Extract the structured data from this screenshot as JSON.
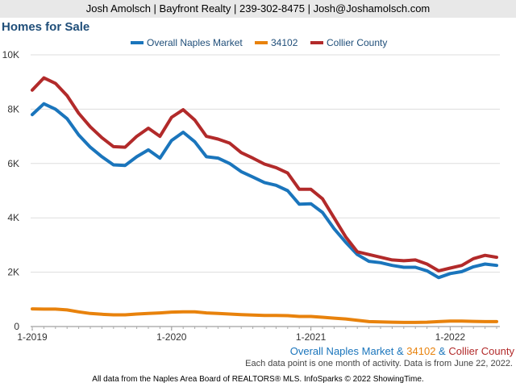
{
  "header": {
    "contact": "Josh Amolsch | Bayfront Realty | 239-302-8475 | Josh@Joshamolsch.com"
  },
  "chart_title": "Homes for Sale",
  "footer_series": {
    "s1": "Overall Naples Market",
    "amp1": " & ",
    "s2": "34102",
    "amp2": " & ",
    "s3": "Collier County"
  },
  "note": "Each data point is one month of activity. Data is from June 22, 2022.",
  "footer": "All data from the Naples Area Board of REALTORS® MLS. InfoSparks © 2022 ShowingTime.",
  "colors": {
    "naples": "#1a75bc",
    "z34102": "#e8820c",
    "collier": "#b22a2a"
  },
  "chart_data": {
    "type": "line",
    "title": "Homes for Sale",
    "x_start": "2019-01",
    "x_tick_labels": [
      "1-2019",
      "1-2020",
      "1-2021",
      "1-2022"
    ],
    "y_tick_labels": [
      "0",
      "2K",
      "4K",
      "6K",
      "8K",
      "10K"
    ],
    "ylim": [
      0,
      10000
    ],
    "legend_position": "top",
    "series": [
      {
        "name": "Overall Naples Market",
        "color": "#1a75bc",
        "values": [
          7800,
          8200,
          8000,
          7650,
          7050,
          6600,
          6250,
          5950,
          5930,
          6250,
          6500,
          6200,
          6850,
          7150,
          6800,
          6250,
          6200,
          6000,
          5700,
          5500,
          5300,
          5200,
          5000,
          4500,
          4520,
          4200,
          3600,
          3100,
          2650,
          2400,
          2350,
          2250,
          2180,
          2180,
          2050,
          1800,
          1950,
          2020,
          2200,
          2300,
          2250
        ]
      },
      {
        "name": "34102",
        "color": "#e8820c",
        "values": [
          650,
          640,
          640,
          610,
          540,
          480,
          450,
          430,
          430,
          460,
          480,
          500,
          530,
          540,
          540,
          500,
          480,
          460,
          440,
          420,
          410,
          410,
          400,
          370,
          370,
          340,
          310,
          280,
          230,
          180,
          170,
          160,
          150,
          150,
          160,
          180,
          200,
          200,
          190,
          180,
          180
        ]
      },
      {
        "name": "Collier County",
        "color": "#b22a2a",
        "values": [
          8700,
          9150,
          8950,
          8500,
          7850,
          7350,
          6950,
          6620,
          6600,
          7000,
          7300,
          7000,
          7700,
          7980,
          7600,
          7000,
          6900,
          6750,
          6400,
          6200,
          5980,
          5850,
          5650,
          5050,
          5050,
          4700,
          4000,
          3300,
          2750,
          2650,
          2550,
          2450,
          2420,
          2450,
          2300,
          2050,
          2150,
          2250,
          2500,
          2620,
          2550
        ]
      }
    ]
  }
}
